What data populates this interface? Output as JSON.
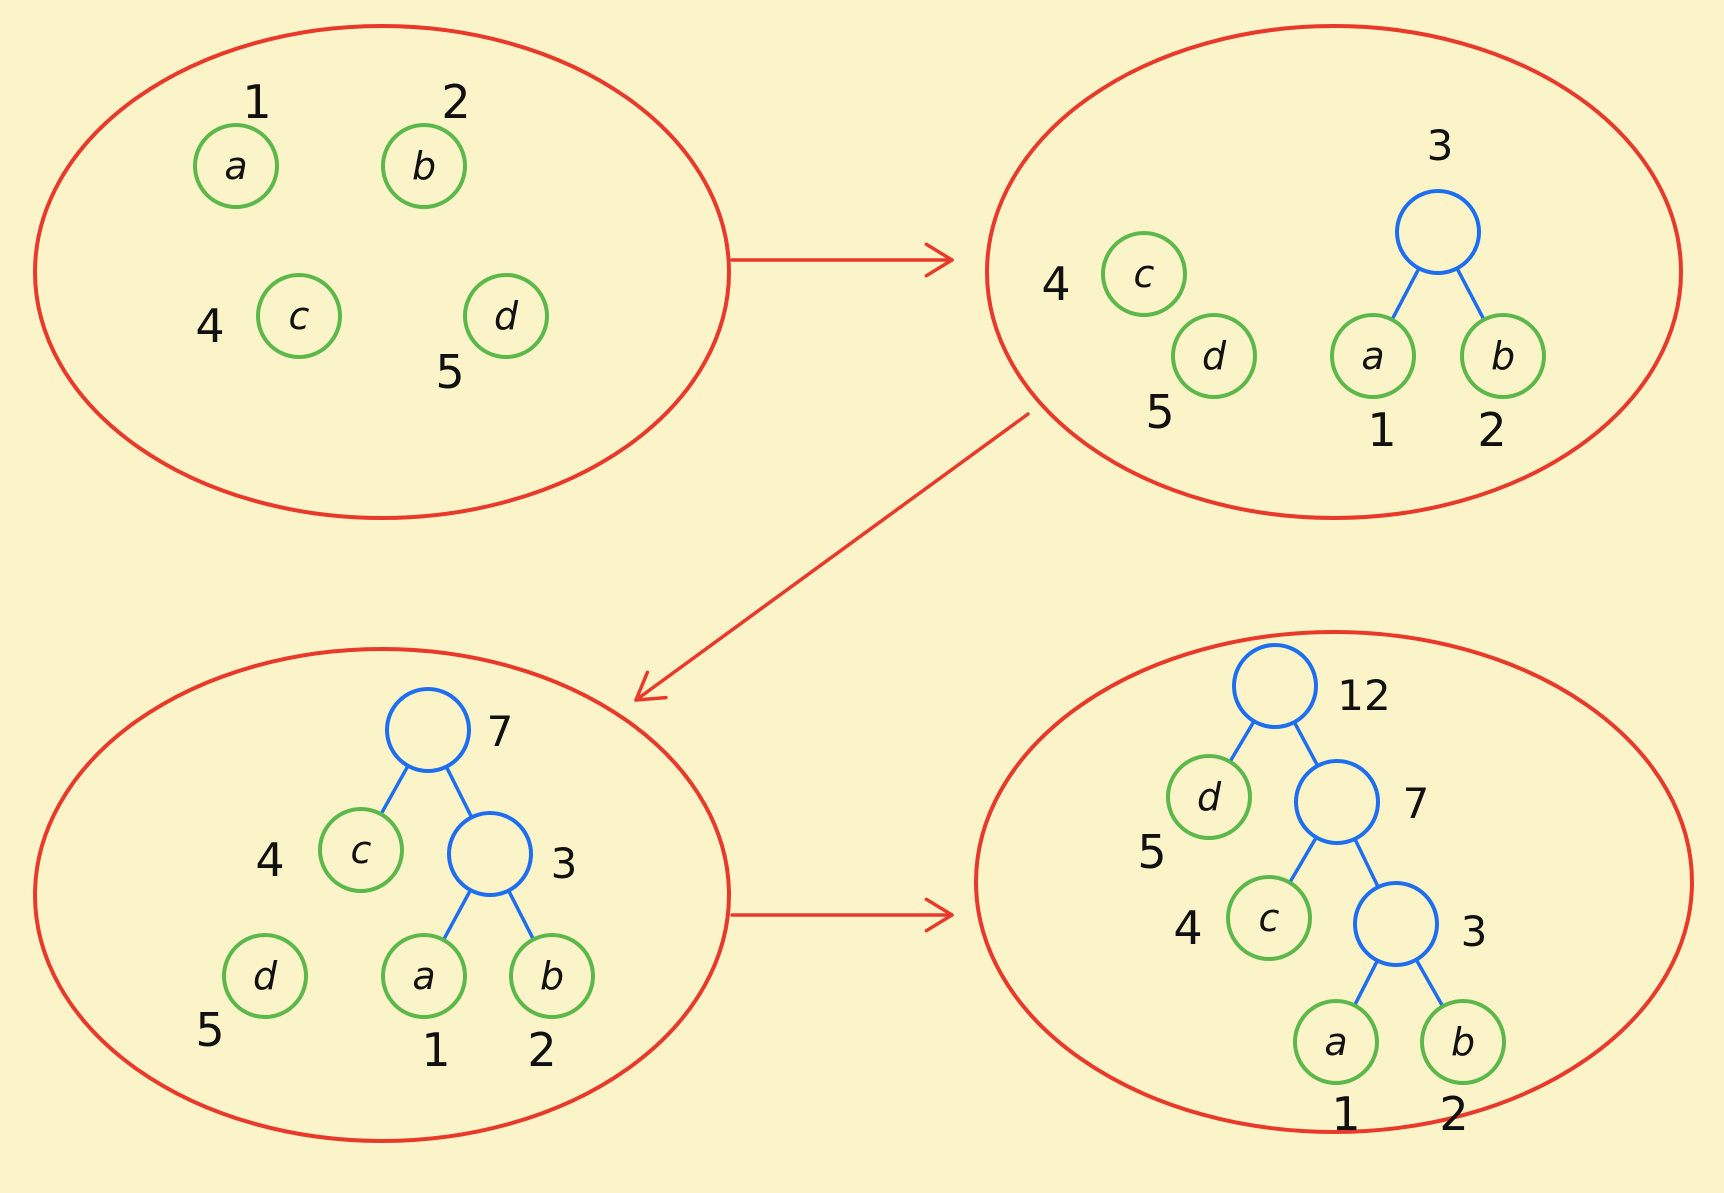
{
  "colors": {
    "background": "#fbf4c8",
    "panel_outline": "#e8392b",
    "arrow": "#e8392b",
    "leaf_node": "#5cb84a",
    "internal_node": "#1e6ef0",
    "edge": "#1e6ef0",
    "text": "#111111"
  },
  "panels": [
    {
      "id": "p1",
      "nodes": [
        {
          "id": "a",
          "kind": "leaf",
          "letter": "a",
          "weight": "1"
        },
        {
          "id": "b",
          "kind": "leaf",
          "letter": "b",
          "weight": "2"
        },
        {
          "id": "c",
          "kind": "leaf",
          "letter": "c",
          "weight": "4"
        },
        {
          "id": "d",
          "kind": "leaf",
          "letter": "d",
          "weight": "5"
        }
      ],
      "edges": []
    },
    {
      "id": "p2",
      "nodes": [
        {
          "id": "c",
          "kind": "leaf",
          "letter": "c",
          "weight": "4"
        },
        {
          "id": "d",
          "kind": "leaf",
          "letter": "d",
          "weight": "5"
        },
        {
          "id": "n3",
          "kind": "internal",
          "letter": "",
          "weight": "3"
        },
        {
          "id": "a",
          "kind": "leaf",
          "letter": "a",
          "weight": "1"
        },
        {
          "id": "b",
          "kind": "leaf",
          "letter": "b",
          "weight": "2"
        }
      ],
      "edges": [
        [
          "n3",
          "a"
        ],
        [
          "n3",
          "b"
        ]
      ]
    },
    {
      "id": "p3",
      "nodes": [
        {
          "id": "n7",
          "kind": "internal",
          "letter": "",
          "weight": "7"
        },
        {
          "id": "c",
          "kind": "leaf",
          "letter": "c",
          "weight": "4"
        },
        {
          "id": "n3",
          "kind": "internal",
          "letter": "",
          "weight": "3"
        },
        {
          "id": "d",
          "kind": "leaf",
          "letter": "d",
          "weight": "5"
        },
        {
          "id": "a",
          "kind": "leaf",
          "letter": "a",
          "weight": "1"
        },
        {
          "id": "b",
          "kind": "leaf",
          "letter": "b",
          "weight": "2"
        }
      ],
      "edges": [
        [
          "n7",
          "c"
        ],
        [
          "n7",
          "n3"
        ],
        [
          "n3",
          "a"
        ],
        [
          "n3",
          "b"
        ]
      ]
    },
    {
      "id": "p4",
      "nodes": [
        {
          "id": "n12",
          "kind": "internal",
          "letter": "",
          "weight": "12"
        },
        {
          "id": "d",
          "kind": "leaf",
          "letter": "d",
          "weight": "5"
        },
        {
          "id": "n7",
          "kind": "internal",
          "letter": "",
          "weight": "7"
        },
        {
          "id": "c",
          "kind": "leaf",
          "letter": "c",
          "weight": "4"
        },
        {
          "id": "n3",
          "kind": "internal",
          "letter": "",
          "weight": "3"
        },
        {
          "id": "a",
          "kind": "leaf",
          "letter": "a",
          "weight": "1"
        },
        {
          "id": "b",
          "kind": "leaf",
          "letter": "b",
          "weight": "2"
        }
      ],
      "edges": [
        [
          "n12",
          "d"
        ],
        [
          "n12",
          "n7"
        ],
        [
          "n7",
          "c"
        ],
        [
          "n7",
          "n3"
        ],
        [
          "n3",
          "a"
        ],
        [
          "n3",
          "b"
        ]
      ]
    }
  ],
  "transitions": [
    {
      "from": "p1",
      "to": "p2"
    },
    {
      "from": "p2",
      "to": "p3"
    },
    {
      "from": "p3",
      "to": "p4"
    }
  ]
}
